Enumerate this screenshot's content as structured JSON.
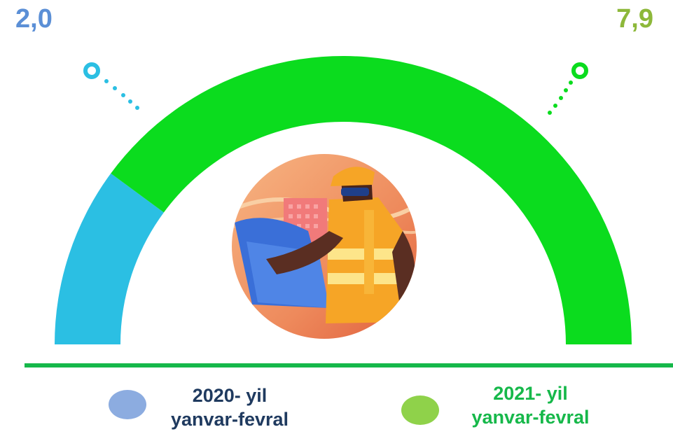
{
  "values": {
    "left": "2,0",
    "right": "7,9"
  },
  "colors": {
    "left_arc": "#2bbfe3",
    "right_arc": "#0bdc1e",
    "left_value": "#5b8fd6",
    "right_value": "#8db83a",
    "baseline": "#16b84a",
    "legend_left_dot": "#8cace0",
    "legend_right_dot": "#8fd24a",
    "legend_left_text": "#1f3a5f",
    "legend_right_text": "#16b84a"
  },
  "chart_data": {
    "type": "gauge",
    "series": [
      {
        "name": "2020- yil yanvar-fevral",
        "value": 2.0
      },
      {
        "name": "2021- yil yanvar-fevral",
        "value": 7.9
      }
    ]
  },
  "legend": [
    {
      "line1": "2020- yil",
      "line2": "yanvar-fevral"
    },
    {
      "line1": "2021- yil",
      "line2": "yanvar-fevral"
    }
  ],
  "illustration": "construction-worker-with-blueprint"
}
